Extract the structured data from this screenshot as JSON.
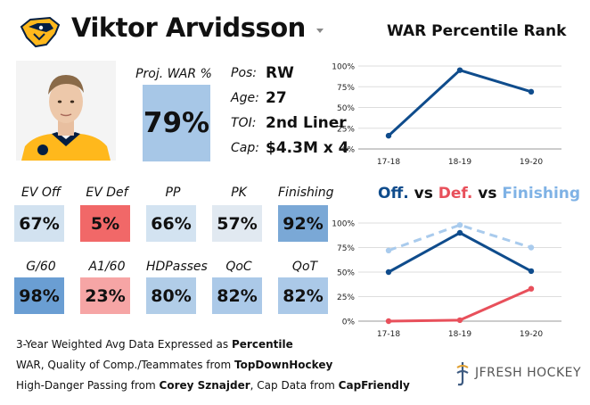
{
  "header": {
    "player_name": "Viktor Arvidsson"
  },
  "icons": {
    "team_logo": "nashville-predators-logo-icon",
    "dropdown": "chevron-down-icon",
    "brand": "jfresh-hockey-logo-icon"
  },
  "war": {
    "label": "Proj. WAR %",
    "value": "79%"
  },
  "info": [
    {
      "label": "Pos:",
      "value": "RW"
    },
    {
      "label": "Age:",
      "value": "27"
    },
    {
      "label": "TOI:",
      "value": "2nd Liner"
    },
    {
      "label": "Cap:",
      "value": "$4.3M x 4"
    }
  ],
  "stats": [
    {
      "label": "EV Off",
      "value": "67%",
      "color": "#d2e2f0"
    },
    {
      "label": "EV Def",
      "value": "5%",
      "color": "#f16868"
    },
    {
      "label": "PP",
      "value": "66%",
      "color": "#d3e3f1"
    },
    {
      "label": "PK",
      "value": "57%",
      "color": "#e1e9f1"
    },
    {
      "label": "Finishing",
      "value": "92%",
      "color": "#7aa8d6"
    },
    {
      "label": "G/60",
      "value": "98%",
      "color": "#6a9ed3"
    },
    {
      "label": "A1/60",
      "value": "23%",
      "color": "#f6a5a5"
    },
    {
      "label": "HDPasses",
      "value": "80%",
      "color": "#b1cde8"
    },
    {
      "label": "QoC",
      "value": "82%",
      "color": "#abc9e8"
    },
    {
      "label": "QoT",
      "value": "82%",
      "color": "#abc9e8"
    }
  ],
  "footer": {
    "line1_pre": "3-Year Weighted Avg Data Expressed as ",
    "line1_bold": "Percentile",
    "line2_pre": "WAR, Quality of Comp./Teammates from ",
    "line2_bold": "TopDownHockey",
    "line3_pre": "High-Danger Passing from ",
    "line3_bold1": "Corey Sznajder",
    "line3_mid": ", Cap Data from ",
    "line3_bold2": "CapFriendly"
  },
  "brand": {
    "text": "JFRESH HOCKEY"
  },
  "chart_data": [
    {
      "type": "line",
      "title": "WAR Percentile Rank",
      "x": [
        "17-18",
        "18-19",
        "19-20"
      ],
      "y_ticks": [
        "0%",
        "25%",
        "50%",
        "75%",
        "100%"
      ],
      "ylim": [
        0,
        100
      ],
      "grid": true,
      "series": [
        {
          "values": [
            16,
            95,
            69
          ],
          "color": "#0f4c8c",
          "style": "solid"
        }
      ]
    },
    {
      "type": "line",
      "title_parts": [
        {
          "text": "Off.",
          "color": "#0f4c8c"
        },
        {
          "text": " vs ",
          "color": "#111111"
        },
        {
          "text": "Def.",
          "color": "#e8505b"
        },
        {
          "text": " vs ",
          "color": "#111111"
        },
        {
          "text": "Finishing",
          "color": "#7fb2e5"
        }
      ],
      "x": [
        "17-18",
        "18-19",
        "19-20"
      ],
      "y_ticks": [
        "0%",
        "25%",
        "50%",
        "75%",
        "100%"
      ],
      "ylim": [
        0,
        100
      ],
      "grid": true,
      "series": [
        {
          "name": "Off.",
          "values": [
            50,
            90,
            51
          ],
          "color": "#0f4c8c",
          "style": "solid"
        },
        {
          "name": "Def.",
          "values": [
            0,
            1,
            33
          ],
          "color": "#e8505b",
          "style": "solid"
        },
        {
          "name": "Finishing",
          "values": [
            72,
            98,
            75
          ],
          "color": "#a9cbed",
          "style": "dashed"
        }
      ]
    }
  ]
}
